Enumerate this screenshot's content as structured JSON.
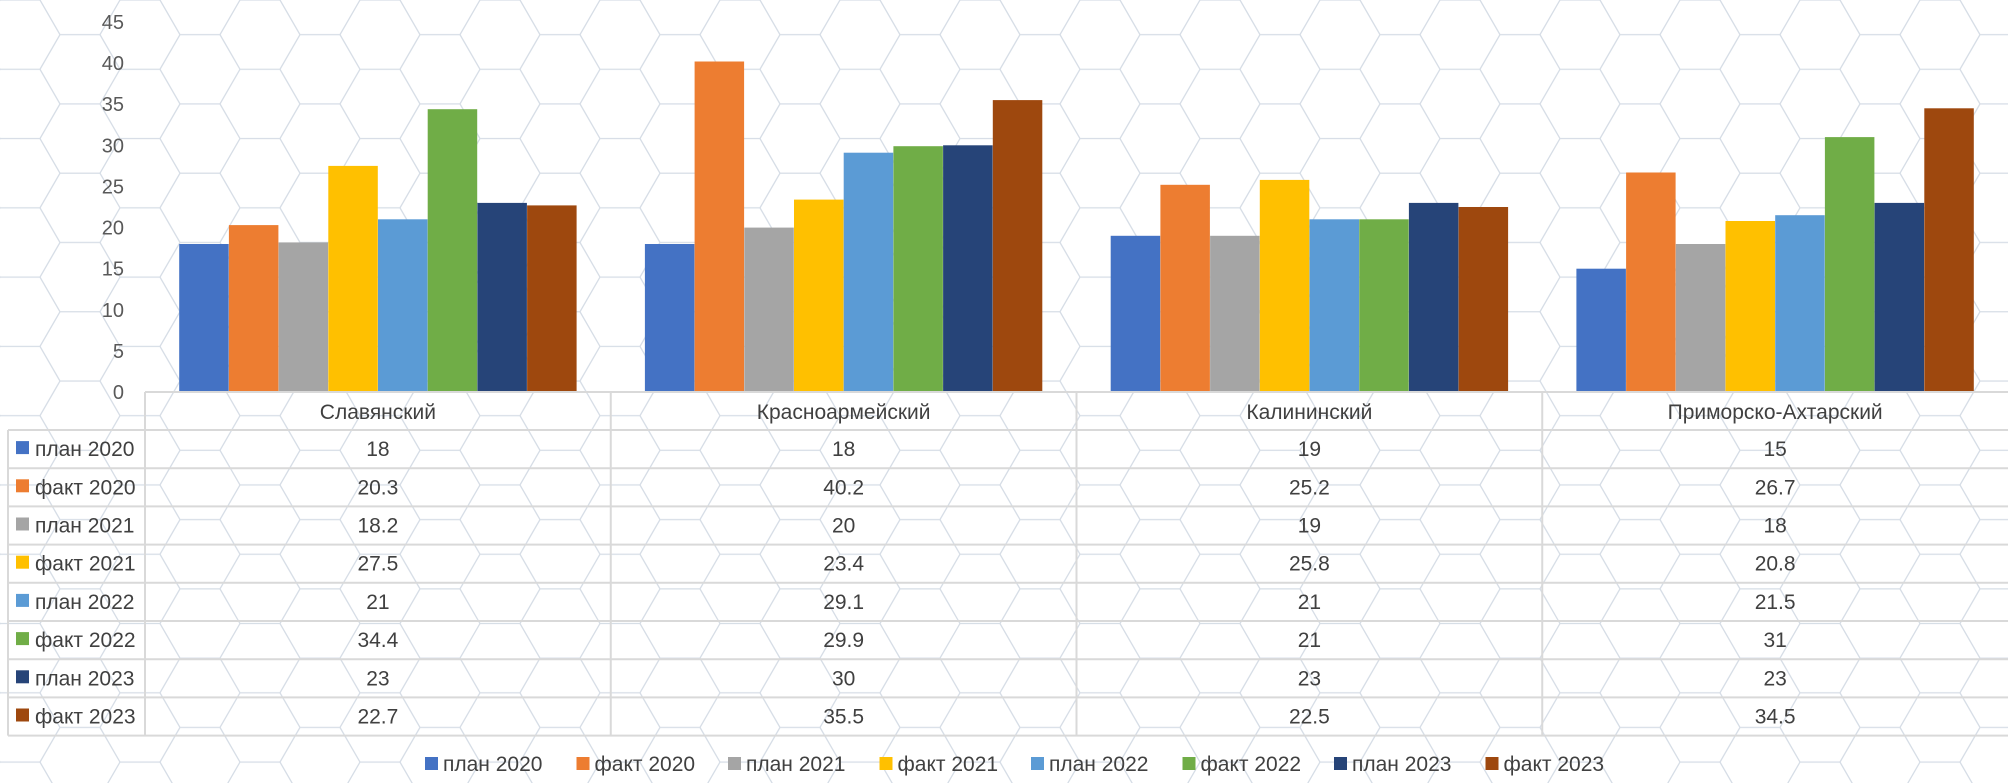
{
  "chart_data": {
    "type": "bar",
    "title": "",
    "xlabel": "",
    "ylabel": "",
    "ylim": [
      0,
      45
    ],
    "yticks": [
      0,
      5,
      10,
      15,
      20,
      25,
      30,
      35,
      40,
      45
    ],
    "grid": false,
    "legend_position": "bottom",
    "data_table": true,
    "categories": [
      "Славянский",
      "Красноармейский",
      "Калининский",
      "Приморско-Ахтарский"
    ],
    "series": [
      {
        "name": "план 2020",
        "color": "#4472C4",
        "values": [
          18,
          18,
          19,
          15
        ]
      },
      {
        "name": "факт 2020",
        "color": "#ED7D31",
        "values": [
          20.3,
          40.2,
          25.2,
          26.7
        ]
      },
      {
        "name": "план 2021",
        "color": "#A5A5A5",
        "values": [
          18.2,
          20,
          19,
          18
        ]
      },
      {
        "name": "факт 2021",
        "color": "#FFC000",
        "values": [
          27.5,
          23.4,
          25.8,
          20.8
        ]
      },
      {
        "name": "план 2022",
        "color": "#5B9BD5",
        "values": [
          21,
          29.1,
          21,
          21.5
        ]
      },
      {
        "name": "факт 2022",
        "color": "#70AD47",
        "values": [
          34.4,
          29.9,
          21,
          31
        ]
      },
      {
        "name": "план 2023",
        "color": "#264478",
        "values": [
          23,
          30,
          23,
          23
        ]
      },
      {
        "name": "факт 2023",
        "color": "#9E480E",
        "values": [
          22.7,
          35.5,
          22.5,
          34.5
        ]
      }
    ]
  }
}
